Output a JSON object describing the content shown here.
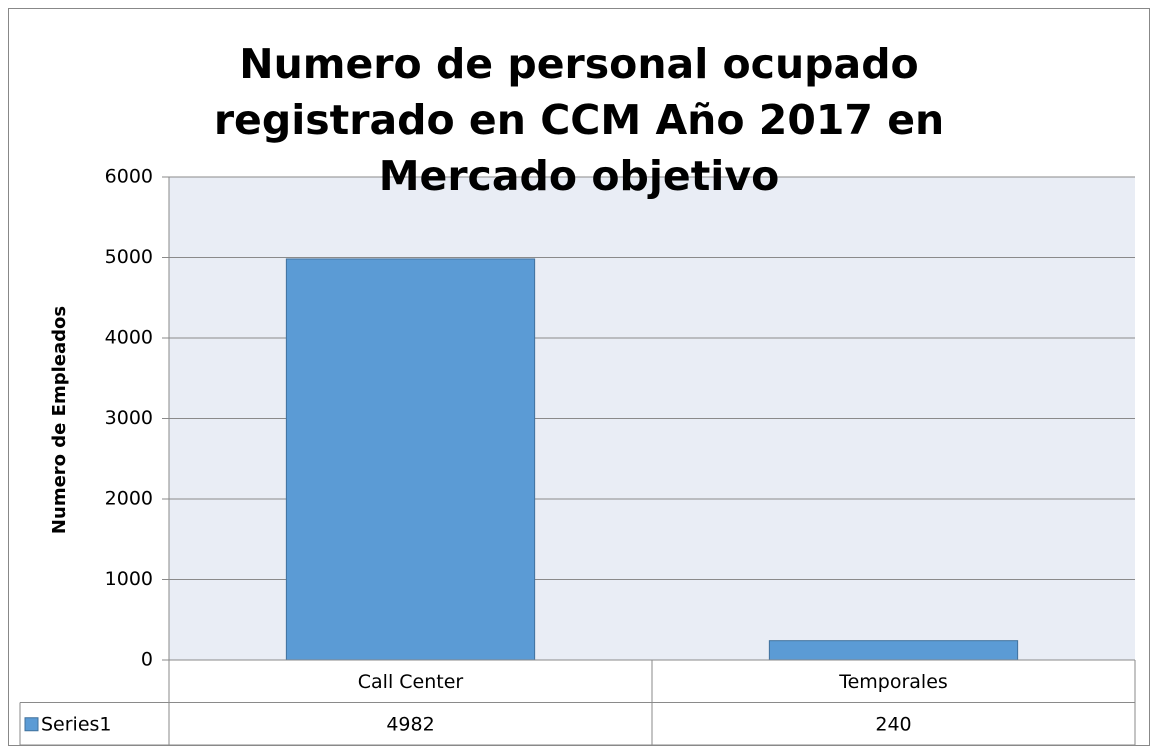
{
  "chart_data": {
    "type": "bar",
    "title": "Numero de personal ocupado registrado en CCM Año 2017 en Mercado objetivo",
    "y_label": "Numero de Empleados",
    "categories": [
      "Call Center",
      "Temporales"
    ],
    "series": [
      {
        "name": "Series1",
        "color": "#5b9bd5",
        "values": [
          4982,
          240
        ]
      }
    ],
    "ylim": [
      0,
      6000
    ],
    "yticks": [
      0,
      1000,
      2000,
      3000,
      4000,
      5000,
      6000
    ],
    "grid": true,
    "data_table": true
  }
}
